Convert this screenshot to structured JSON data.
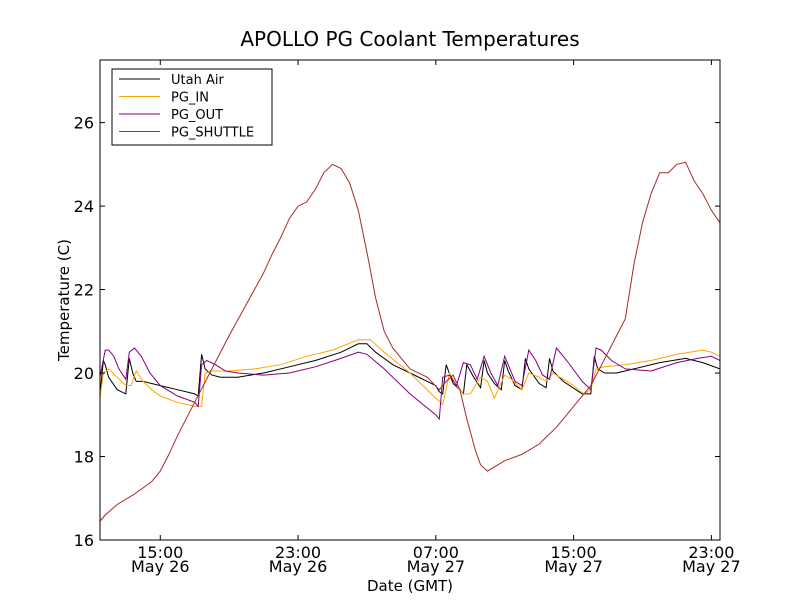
{
  "chart_data": {
    "type": "line",
    "title": "APOLLO PG Coolant Temperatures",
    "xlabel": "Date (GMT)",
    "ylabel": "Temperature (C)",
    "x_unit": "hours since 2014-05-26 00:00 GMT",
    "xlim": [
      11.5,
      47.5
    ],
    "ylim": [
      16,
      27.5
    ],
    "grid": false,
    "legend_position": "top-left",
    "y_ticks": [
      16,
      18,
      20,
      22,
      24,
      26
    ],
    "x_ticks": [
      {
        "x": 15,
        "time": "15:00",
        "date": "May 26"
      },
      {
        "x": 23,
        "time": "23:00",
        "date": "May 26"
      },
      {
        "x": 31,
        "time": "07:00",
        "date": "May 27"
      },
      {
        "x": 39,
        "time": "15:00",
        "date": "May 27"
      },
      {
        "x": 47,
        "time": "23:00",
        "date": "May 27"
      }
    ],
    "series": [
      {
        "name": "Utah Air",
        "color": "#000000",
        "x": [
          11.5,
          11.7,
          11.8,
          12.0,
          12.5,
          13.0,
          13.2,
          13.4,
          13.6,
          14.0,
          15.0,
          16.0,
          17.0,
          17.2,
          17.4,
          17.6,
          18.0,
          18.5,
          19.5,
          21.0,
          22.5,
          24.0,
          25.5,
          26.5,
          27.0,
          27.5,
          28.5,
          29.5,
          31.0,
          31.2,
          31.4,
          31.6,
          32.0,
          32.4,
          32.6,
          32.8,
          33.2,
          33.6,
          33.8,
          34.0,
          34.4,
          34.8,
          35.0,
          35.2,
          35.6,
          36.0,
          36.2,
          36.4,
          37.0,
          37.4,
          37.6,
          37.8,
          38.4,
          39.5,
          40.0,
          40.2,
          40.4,
          40.8,
          41.5,
          42.5,
          44.0,
          45.5,
          46.5,
          47.5
        ],
        "values": [
          19.5,
          20.3,
          20.2,
          19.9,
          19.6,
          19.5,
          20.35,
          20.0,
          19.8,
          19.8,
          19.7,
          19.6,
          19.5,
          19.45,
          20.45,
          20.1,
          19.95,
          19.9,
          19.9,
          20.0,
          20.15,
          20.3,
          20.5,
          20.7,
          20.7,
          20.5,
          20.2,
          20.0,
          19.7,
          19.55,
          19.5,
          20.2,
          19.75,
          19.6,
          19.5,
          20.2,
          19.9,
          19.65,
          20.3,
          20.0,
          19.75,
          19.6,
          20.3,
          20.05,
          19.7,
          19.6,
          20.35,
          20.1,
          19.75,
          19.65,
          20.35,
          20.05,
          19.8,
          19.5,
          19.5,
          20.4,
          20.1,
          20.0,
          20.0,
          20.1,
          20.25,
          20.35,
          20.25,
          20.1
        ]
      },
      {
        "name": "PG_IN",
        "color": "#ffa500",
        "x": [
          11.5,
          11.7,
          12.0,
          12.5,
          13.0,
          13.3,
          13.6,
          14.0,
          14.5,
          15.0,
          16.0,
          17.0,
          17.4,
          17.6,
          18.0,
          19.0,
          20.5,
          22.0,
          23.5,
          25.0,
          26.5,
          27.2,
          28.0,
          29.5,
          31.0,
          31.4,
          31.8,
          32.2,
          32.6,
          33.0,
          33.6,
          34.0,
          34.4,
          35.0,
          35.4,
          36.0,
          36.4,
          37.0,
          37.4,
          37.8,
          38.4,
          39.0,
          39.6,
          40.0,
          40.3,
          40.8,
          42.0,
          43.5,
          45.0,
          46.5,
          47.0,
          47.5
        ],
        "values": [
          19.4,
          20.0,
          20.1,
          19.9,
          19.7,
          19.7,
          20.05,
          19.8,
          19.6,
          19.45,
          19.3,
          19.2,
          19.2,
          20.0,
          20.05,
          20.05,
          20.1,
          20.2,
          20.4,
          20.55,
          20.8,
          20.8,
          20.5,
          20.0,
          19.4,
          19.25,
          20.0,
          19.7,
          19.5,
          19.5,
          19.9,
          19.8,
          19.4,
          19.95,
          19.85,
          19.6,
          20.0,
          19.9,
          19.8,
          20.0,
          19.85,
          19.7,
          19.5,
          19.6,
          20.1,
          20.15,
          20.2,
          20.3,
          20.45,
          20.55,
          20.5,
          20.4
        ]
      },
      {
        "name": "PG_OUT",
        "color": "#800080",
        "x": [
          11.5,
          11.8,
          12.0,
          12.3,
          12.6,
          13.0,
          13.2,
          13.5,
          13.9,
          14.4,
          15.0,
          16.0,
          17.0,
          17.2,
          17.4,
          17.7,
          18.2,
          18.8,
          19.5,
          21.0,
          22.5,
          24.0,
          25.5,
          26.5,
          27.0,
          28.0,
          29.5,
          31.0,
          31.2,
          31.4,
          31.8,
          32.2,
          32.6,
          33.0,
          33.4,
          33.8,
          34.2,
          34.6,
          35.0,
          35.2,
          35.6,
          36.0,
          36.4,
          36.8,
          37.2,
          37.6,
          38.0,
          38.6,
          39.5,
          40.0,
          40.3,
          40.6,
          41.2,
          42.0,
          43.5,
          45.0,
          46.2,
          47.0,
          47.5
        ],
        "values": [
          19.9,
          20.55,
          20.55,
          20.4,
          20.1,
          19.85,
          20.5,
          20.6,
          20.4,
          20.0,
          19.7,
          19.45,
          19.3,
          19.2,
          20.2,
          20.3,
          20.2,
          20.05,
          20.0,
          19.95,
          20.0,
          20.15,
          20.35,
          20.5,
          20.45,
          20.1,
          19.5,
          19.0,
          18.9,
          19.9,
          19.95,
          19.7,
          20.25,
          20.2,
          19.85,
          20.4,
          20.0,
          19.7,
          20.4,
          20.2,
          19.8,
          19.7,
          20.55,
          20.3,
          19.95,
          19.85,
          20.6,
          20.3,
          19.8,
          19.6,
          20.6,
          20.55,
          20.3,
          20.1,
          20.05,
          20.25,
          20.35,
          20.4,
          20.3
        ]
      },
      {
        "name": "PG_SHUTTLE",
        "color": "#a52a2a",
        "x": [
          11.5,
          11.8,
          12.5,
          13.5,
          14.5,
          15.0,
          15.5,
          16.0,
          17.0,
          18.0,
          19.0,
          20.0,
          21.0,
          21.5,
          22.0,
          22.5,
          23.0,
          23.5,
          24.0,
          24.5,
          25.0,
          25.5,
          26.0,
          26.5,
          27.0,
          27.5,
          28.0,
          28.5,
          29.0,
          29.5,
          30.5,
          31.2,
          31.6,
          32.0,
          32.4,
          32.8,
          33.3,
          33.6,
          34.0,
          35.0,
          36.0,
          37.0,
          38.0,
          39.0,
          40.0,
          41.0,
          41.5,
          42.0,
          42.5,
          43.0,
          43.5,
          44.0,
          44.5,
          45.0,
          45.5,
          46.0,
          46.5,
          47.0,
          47.5
        ],
        "values": [
          16.45,
          16.6,
          16.85,
          17.1,
          17.4,
          17.65,
          18.05,
          18.5,
          19.3,
          20.1,
          20.9,
          21.65,
          22.4,
          22.85,
          23.25,
          23.7,
          24.0,
          24.1,
          24.4,
          24.8,
          25.0,
          24.9,
          24.55,
          23.9,
          22.9,
          21.8,
          21.0,
          20.6,
          20.35,
          20.1,
          19.9,
          19.6,
          19.8,
          19.95,
          19.6,
          18.9,
          18.15,
          17.8,
          17.65,
          17.9,
          18.05,
          18.3,
          18.7,
          19.2,
          19.7,
          20.5,
          20.9,
          21.3,
          22.6,
          23.6,
          24.3,
          24.8,
          24.8,
          25.0,
          25.05,
          24.6,
          24.3,
          23.9,
          23.6
        ]
      }
    ]
  }
}
